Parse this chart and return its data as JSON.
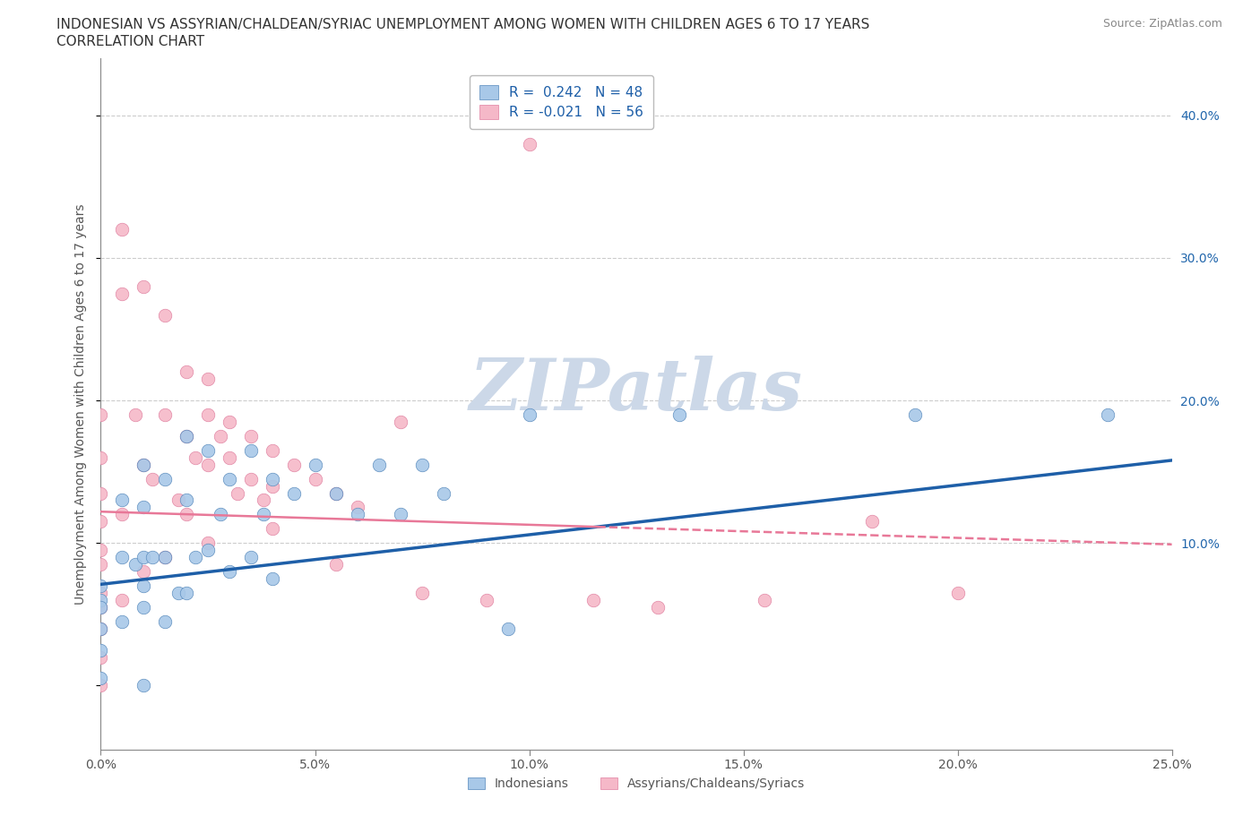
{
  "title_line1": "INDONESIAN VS ASSYRIAN/CHALDEAN/SYRIAC UNEMPLOYMENT AMONG WOMEN WITH CHILDREN AGES 6 TO 17 YEARS",
  "title_line2": "CORRELATION CHART",
  "source_text": "Source: ZipAtlas.com",
  "ylabel": "Unemployment Among Women with Children Ages 6 to 17 years",
  "xlim": [
    0.0,
    0.25
  ],
  "ylim": [
    -0.045,
    0.44
  ],
  "xticks": [
    0.0,
    0.05,
    0.1,
    0.15,
    0.2,
    0.25
  ],
  "xticklabels": [
    "0.0%",
    "5.0%",
    "10.0%",
    "15.0%",
    "20.0%",
    "25.0%"
  ],
  "yticks_right": [
    0.1,
    0.2,
    0.3,
    0.4
  ],
  "ytick_right_labels": [
    "10.0%",
    "20.0%",
    "30.0%",
    "40.0%"
  ],
  "grid_color": "#cccccc",
  "background_color": "#ffffff",
  "watermark_color": "#ccd8e8",
  "blue_color": "#a8c8e8",
  "blue_edge": "#5588bb",
  "blue_dark": "#1e5fa8",
  "pink_color": "#f5b8c8",
  "pink_edge": "#e080a0",
  "pink_line": "#e87898",
  "blue_label": "Indonesians",
  "pink_label": "Assyrians/Chaldeans/Syriacs",
  "blue_trend_x": [
    0.0,
    0.25
  ],
  "blue_trend_y": [
    0.071,
    0.158
  ],
  "pink_trend_x": [
    0.0,
    0.25
  ],
  "pink_trend_y": [
    0.122,
    0.099
  ],
  "indonesian_x": [
    0.0,
    0.0,
    0.0,
    0.0,
    0.0,
    0.0,
    0.005,
    0.005,
    0.005,
    0.008,
    0.01,
    0.01,
    0.01,
    0.01,
    0.01,
    0.01,
    0.012,
    0.015,
    0.015,
    0.015,
    0.018,
    0.02,
    0.02,
    0.02,
    0.022,
    0.025,
    0.025,
    0.028,
    0.03,
    0.03,
    0.035,
    0.035,
    0.038,
    0.04,
    0.04,
    0.045,
    0.05,
    0.055,
    0.06,
    0.065,
    0.07,
    0.075,
    0.08,
    0.095,
    0.1,
    0.135,
    0.19,
    0.235
  ],
  "indonesian_y": [
    0.07,
    0.06,
    0.055,
    0.04,
    0.025,
    0.005,
    0.13,
    0.09,
    0.045,
    0.085,
    0.155,
    0.125,
    0.09,
    0.07,
    0.055,
    0.0,
    0.09,
    0.145,
    0.09,
    0.045,
    0.065,
    0.175,
    0.13,
    0.065,
    0.09,
    0.165,
    0.095,
    0.12,
    0.145,
    0.08,
    0.165,
    0.09,
    0.12,
    0.145,
    0.075,
    0.135,
    0.155,
    0.135,
    0.12,
    0.155,
    0.12,
    0.155,
    0.135,
    0.04,
    0.19,
    0.19,
    0.19,
    0.19
  ],
  "assyrian_x": [
    0.0,
    0.0,
    0.0,
    0.0,
    0.0,
    0.0,
    0.0,
    0.0,
    0.0,
    0.0,
    0.0,
    0.005,
    0.005,
    0.005,
    0.005,
    0.008,
    0.01,
    0.01,
    0.01,
    0.012,
    0.015,
    0.015,
    0.015,
    0.018,
    0.02,
    0.02,
    0.02,
    0.022,
    0.025,
    0.025,
    0.025,
    0.025,
    0.028,
    0.03,
    0.03,
    0.032,
    0.035,
    0.035,
    0.038,
    0.04,
    0.04,
    0.04,
    0.045,
    0.05,
    0.055,
    0.055,
    0.06,
    0.07,
    0.075,
    0.09,
    0.1,
    0.115,
    0.13,
    0.155,
    0.18,
    0.2
  ],
  "assyrian_y": [
    0.19,
    0.16,
    0.135,
    0.115,
    0.095,
    0.085,
    0.065,
    0.055,
    0.04,
    0.02,
    0.0,
    0.32,
    0.275,
    0.12,
    0.06,
    0.19,
    0.28,
    0.155,
    0.08,
    0.145,
    0.26,
    0.19,
    0.09,
    0.13,
    0.22,
    0.175,
    0.12,
    0.16,
    0.215,
    0.19,
    0.155,
    0.1,
    0.175,
    0.185,
    0.16,
    0.135,
    0.175,
    0.145,
    0.13,
    0.165,
    0.14,
    0.11,
    0.155,
    0.145,
    0.135,
    0.085,
    0.125,
    0.185,
    0.065,
    0.06,
    0.38,
    0.06,
    0.055,
    0.06,
    0.115,
    0.065
  ]
}
